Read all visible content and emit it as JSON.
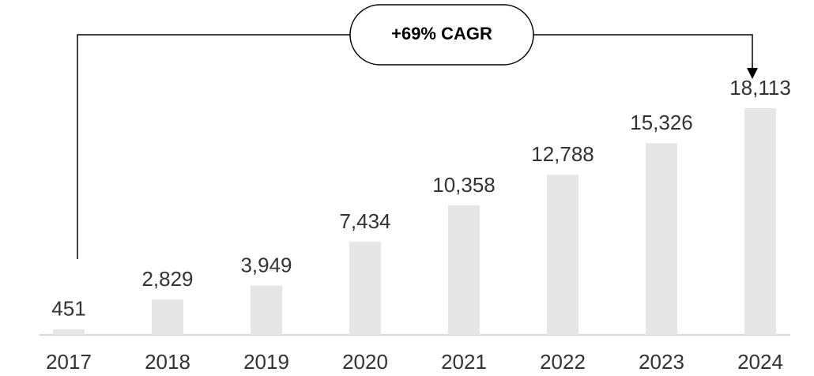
{
  "chart_data": {
    "type": "bar",
    "categories": [
      "2017",
      "2018",
      "2019",
      "2020",
      "2021",
      "2022",
      "2023",
      "2024"
    ],
    "values": [
      451,
      2829,
      3949,
      7434,
      10358,
      12788,
      15326,
      18113
    ],
    "value_labels": [
      "451",
      "2,829",
      "3,949",
      "7,434",
      "10,358",
      "12,788",
      "15,326",
      "18,113"
    ],
    "color": "#e6e6e6",
    "annotation": "+69% CAGR"
  }
}
